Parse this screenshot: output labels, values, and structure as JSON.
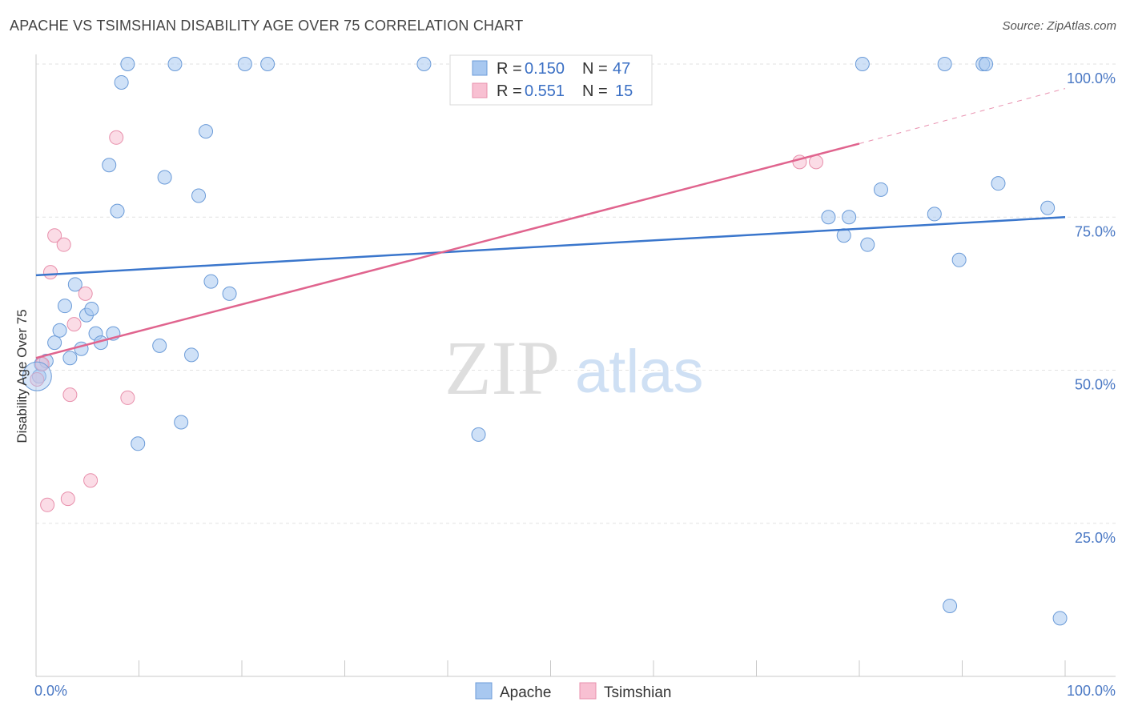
{
  "header": {
    "title": "APACHE VS TSIMSHIAN DISABILITY AGE OVER 75 CORRELATION CHART",
    "source": "Source: ZipAtlas.com"
  },
  "chart_data": {
    "type": "scatter",
    "title": "APACHE VS TSIMSHIAN DISABILITY AGE OVER 75 CORRELATION CHART",
    "xlabel": "",
    "ylabel": "Disability Age Over 75",
    "xlim": [
      0,
      100
    ],
    "ylim": [
      0,
      100
    ],
    "x_tick_labels": [
      "0.0%",
      "100.0%"
    ],
    "y_ticks": [
      25,
      50,
      75,
      100
    ],
    "y_tick_labels": [
      "25.0%",
      "50.0%",
      "75.0%",
      "100.0%"
    ],
    "watermark": {
      "zip": "ZIP",
      "atlas": "atlas"
    },
    "legend": {
      "r_label": "R =",
      "n_label": "N =",
      "entries": [
        {
          "series": "Apache",
          "r": "0.150",
          "n": "47"
        },
        {
          "series": "Tsimshian",
          "r": "0.551",
          "n": "15"
        }
      ]
    },
    "series": [
      {
        "name": "Apache",
        "color": "#a8c8f0",
        "stroke": "#6b9bd8",
        "line_color": "#3a76cc",
        "trend": {
          "x0": 0,
          "y0": 65.5,
          "x1": 100,
          "y1": 75.0
        },
        "points": [
          [
            0.3,
            49.0
          ],
          [
            0.5,
            51.0
          ],
          [
            1.0,
            51.5
          ],
          [
            1.8,
            54.5
          ],
          [
            2.3,
            56.5
          ],
          [
            2.8,
            60.5
          ],
          [
            3.3,
            52.0
          ],
          [
            3.8,
            64.0
          ],
          [
            4.4,
            53.5
          ],
          [
            4.9,
            59.0
          ],
          [
            5.4,
            60.0
          ],
          [
            5.8,
            56.0
          ],
          [
            6.3,
            54.5
          ],
          [
            7.1,
            83.5
          ],
          [
            7.5,
            56.0
          ],
          [
            7.9,
            76.0
          ],
          [
            8.3,
            97.0
          ],
          [
            8.9,
            100.0
          ],
          [
            9.9,
            38.0
          ],
          [
            12.0,
            54.0
          ],
          [
            12.5,
            81.5
          ],
          [
            13.5,
            100.0
          ],
          [
            14.1,
            41.5
          ],
          [
            15.1,
            52.5
          ],
          [
            15.8,
            78.5
          ],
          [
            16.5,
            89.0
          ],
          [
            17.0,
            64.5
          ],
          [
            18.8,
            62.5
          ],
          [
            20.3,
            100.0
          ],
          [
            22.5,
            100.0
          ],
          [
            37.7,
            100.0
          ],
          [
            43.0,
            39.5
          ],
          [
            77.0,
            75.0
          ],
          [
            78.5,
            72.0
          ],
          [
            79.0,
            75.0
          ],
          [
            80.3,
            100.0
          ],
          [
            80.8,
            70.5
          ],
          [
            82.1,
            79.5
          ],
          [
            87.3,
            75.5
          ],
          [
            88.3,
            100.0
          ],
          [
            88.8,
            11.5
          ],
          [
            89.7,
            68.0
          ],
          [
            92.0,
            100.0
          ],
          [
            92.3,
            100.0
          ],
          [
            93.5,
            80.5
          ],
          [
            98.3,
            76.5
          ],
          [
            99.5,
            9.5
          ]
        ]
      },
      {
        "name": "Tsimshian",
        "color": "#f8c0d2",
        "stroke": "#e890ac",
        "line_color": "#e0648e",
        "trend": {
          "x0": 0,
          "y0": 52.0,
          "x1": 80.0,
          "y1": 87.0,
          "dash_to_x": 100,
          "dash_to_y": 96.0
        },
        "points": [
          [
            0.1,
            48.5
          ],
          [
            0.6,
            51.0
          ],
          [
            1.1,
            28.0
          ],
          [
            1.4,
            66.0
          ],
          [
            1.8,
            72.0
          ],
          [
            2.7,
            70.5
          ],
          [
            3.1,
            29.0
          ],
          [
            3.3,
            46.0
          ],
          [
            3.7,
            57.5
          ],
          [
            4.8,
            62.5
          ],
          [
            5.3,
            32.0
          ],
          [
            7.8,
            88.0
          ],
          [
            8.9,
            45.5
          ],
          [
            74.2,
            84.0
          ],
          [
            75.8,
            84.0
          ]
        ]
      }
    ]
  }
}
